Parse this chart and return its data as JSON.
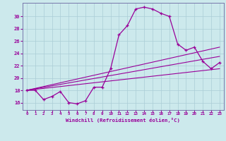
{
  "xlabel": "Windchill (Refroidissement éolien,°C)",
  "bg_color": "#cce9ec",
  "grid_color": "#aacdd6",
  "line_color": "#990099",
  "spine_color": "#7777aa",
  "x_ticks": [
    0,
    1,
    2,
    3,
    4,
    5,
    6,
    7,
    8,
    9,
    10,
    11,
    12,
    13,
    14,
    15,
    16,
    17,
    18,
    19,
    20,
    21,
    22,
    23
  ],
  "y_ticks": [
    16,
    18,
    20,
    22,
    24,
    26,
    28,
    30
  ],
  "ylim": [
    14.8,
    32.2
  ],
  "xlim": [
    -0.5,
    23.5
  ],
  "curve1_x": [
    0,
    1,
    2,
    3,
    4,
    5,
    6,
    7,
    8,
    9,
    10,
    11,
    12,
    13,
    14,
    15,
    16,
    17,
    18,
    19,
    20,
    21,
    22,
    23
  ],
  "curve1_y": [
    18.0,
    18.0,
    16.5,
    17.0,
    17.8,
    16.0,
    15.8,
    16.3,
    18.5,
    18.5,
    21.5,
    27.0,
    28.5,
    31.2,
    31.5,
    31.2,
    30.5,
    30.0,
    25.5,
    24.5,
    25.0,
    22.7,
    21.5,
    22.5
  ],
  "line2_x": [
    0,
    23
  ],
  "line2_y": [
    18.0,
    21.5
  ],
  "line3_x": [
    0,
    23
  ],
  "line3_y": [
    18.0,
    23.5
  ],
  "line4_x": [
    0,
    23
  ],
  "line4_y": [
    18.0,
    25.0
  ]
}
